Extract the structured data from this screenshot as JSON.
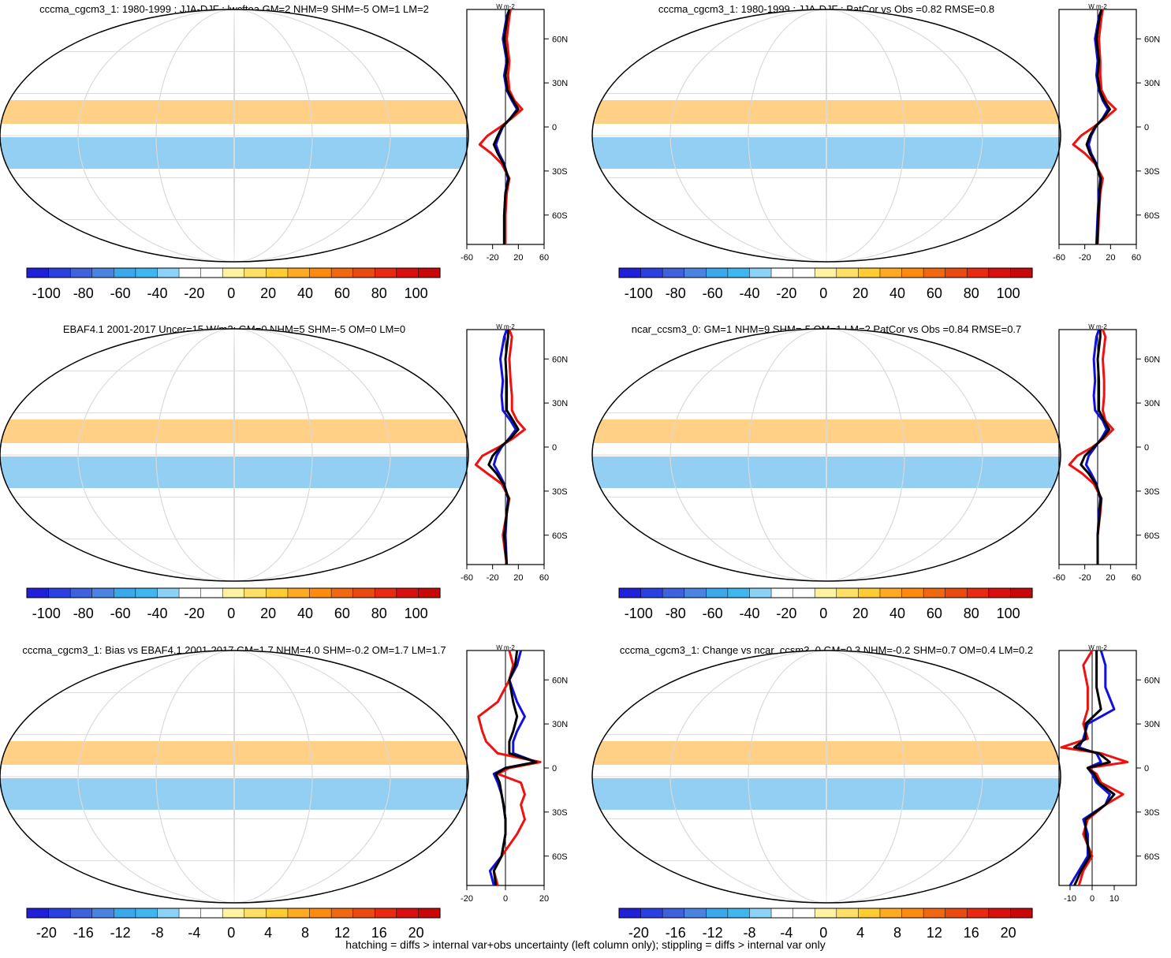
{
  "footer": "hatching = diffs > internal var+obs uncertainty (left column only); stippling = diffs > internal var only",
  "colors": {
    "map_fill": "#ffffff",
    "grid": "#d9d9d9",
    "zero_line": "#000000",
    "series_blue": "#1010e0",
    "series_red": "#f01010",
    "series_black": "#000000"
  },
  "chart_data": [
    {
      "type": "heatmap",
      "title": "cccma_cgcm3_1: 1980-1999 : JJA-DJF : lwcftoa GM=2 NHM=9 SHM=-5 OM=1 LM=2",
      "colorbar": {
        "labels": [
          "-100",
          "-80",
          "-60",
          "-40",
          "-20",
          "0",
          "20",
          "40",
          "60",
          "80",
          "100"
        ],
        "colors": [
          "#2020d8",
          "#2a40e0",
          "#3e62dc",
          "#4a84e0",
          "#3aa8ea",
          "#40b6f0",
          "#8cd2f6",
          "#ffffff",
          "#ffffff",
          "#fff2a0",
          "#ffe066",
          "#ffcc33",
          "#ffaa22",
          "#ff8a10",
          "#f06810",
          "#e84a10",
          "#e82a10",
          "#d81010",
          "#c80808"
        ]
      },
      "profile": {
        "xlabel": "W m-2",
        "xlim": [
          -60,
          60
        ],
        "xticks": [
          "-60",
          "-20",
          "20",
          "60"
        ],
        "ylim": [
          -80,
          80
        ],
        "yticks": [
          "60N",
          "30N",
          "0",
          "30S",
          "60S"
        ],
        "lat": [
          -80,
          -60,
          -45,
          -35,
          -25,
          -18,
          -12,
          -6,
          0,
          6,
          12,
          18,
          25,
          35,
          45,
          60,
          75,
          80
        ],
        "series": [
          {
            "name": "blue",
            "values": [
              -2,
              -2,
              0,
              4,
              -2,
              -10,
              -15,
              -10,
              -4,
              8,
              18,
              10,
              2,
              -2,
              2,
              -4,
              2,
              6
            ]
          },
          {
            "name": "red",
            "values": [
              0,
              0,
              2,
              6,
              -6,
              -22,
              -40,
              -28,
              -8,
              10,
              26,
              14,
              6,
              4,
              6,
              2,
              6,
              8
            ]
          },
          {
            "name": "black",
            "values": [
              -2,
              -2,
              0,
              5,
              -3,
              -12,
              -18,
              -12,
              -5,
              8,
              20,
              12,
              3,
              0,
              3,
              -2,
              3,
              6
            ]
          }
        ]
      }
    },
    {
      "type": "heatmap",
      "title": "cccma_cgcm3_1: 1980-1999 : JJA-DJF : PatCor vs Obs =0.82 RMSE=0.8",
      "colorbar": {
        "labels": [
          "-100",
          "-80",
          "-60",
          "-40",
          "-20",
          "0",
          "20",
          "40",
          "60",
          "80",
          "100"
        ],
        "colors": [
          "#2020d8",
          "#2a40e0",
          "#3e62dc",
          "#4a84e0",
          "#3aa8ea",
          "#40b6f0",
          "#8cd2f6",
          "#ffffff",
          "#ffffff",
          "#fff2a0",
          "#ffe066",
          "#ffcc33",
          "#ffaa22",
          "#ff8a10",
          "#f06810",
          "#e84a10",
          "#e82a10",
          "#d81010",
          "#c80808"
        ]
      },
      "profile": {
        "xlabel": "W m-2",
        "xlim": [
          -60,
          60
        ],
        "xticks": [
          "-60",
          "-20",
          "20",
          "60"
        ],
        "ylim": [
          -80,
          80
        ],
        "yticks": [
          "60N",
          "30N",
          "0",
          "30S",
          "60S"
        ],
        "lat": [
          -80,
          -60,
          -45,
          -35,
          -25,
          -18,
          -12,
          -6,
          0,
          6,
          12,
          18,
          25,
          35,
          45,
          60,
          75,
          80
        ],
        "series": [
          {
            "name": "blue",
            "values": [
              -2,
              0,
              2,
              4,
              -2,
              -10,
              -14,
              -10,
              -3,
              8,
              16,
              8,
              2,
              -2,
              0,
              -4,
              2,
              6
            ]
          },
          {
            "name": "red",
            "values": [
              0,
              2,
              4,
              8,
              -4,
              -20,
              -38,
              -26,
              -6,
              12,
              28,
              14,
              6,
              4,
              4,
              2,
              6,
              8
            ]
          },
          {
            "name": "black",
            "values": [
              -1,
              1,
              3,
              5,
              -3,
              -12,
              -17,
              -12,
              -4,
              9,
              19,
              10,
              3,
              0,
              2,
              -2,
              3,
              6
            ]
          }
        ]
      }
    },
    {
      "type": "heatmap",
      "title": "EBAF4.1 2001-2017 Uncer=15 W/m2: GM=0 NHM=5 SHM=-5 OM=0 LM=0",
      "colorbar": {
        "labels": [
          "-100",
          "-80",
          "-60",
          "-40",
          "-20",
          "0",
          "20",
          "40",
          "60",
          "80",
          "100"
        ],
        "colors": [
          "#2020d8",
          "#2a40e0",
          "#3e62dc",
          "#4a84e0",
          "#3aa8ea",
          "#40b6f0",
          "#8cd2f6",
          "#ffffff",
          "#ffffff",
          "#fff2a0",
          "#ffe066",
          "#ffcc33",
          "#ffaa22",
          "#ff8a10",
          "#f06810",
          "#e84a10",
          "#e82a10",
          "#d81010",
          "#c80808"
        ]
      },
      "profile": {
        "xlabel": "W m-2",
        "xlim": [
          -60,
          60
        ],
        "xticks": [
          "-60",
          "-20",
          "20",
          "60"
        ],
        "ylim": [
          -80,
          80
        ],
        "yticks": [
          "60N",
          "30N",
          "0",
          "30S",
          "60S"
        ],
        "lat": [
          -80,
          -60,
          -45,
          -35,
          -25,
          -18,
          -12,
          -6,
          0,
          6,
          12,
          18,
          25,
          35,
          45,
          60,
          75,
          80
        ],
        "series": [
          {
            "name": "blue",
            "values": [
              2,
              0,
              2,
              4,
              -2,
              -10,
              -18,
              -14,
              -6,
              6,
              16,
              8,
              -4,
              -6,
              -4,
              -8,
              -2,
              2
            ]
          },
          {
            "name": "red",
            "values": [
              2,
              -4,
              2,
              6,
              -6,
              -28,
              -46,
              -36,
              -10,
              12,
              30,
              18,
              10,
              10,
              8,
              6,
              10,
              6
            ]
          },
          {
            "name": "black",
            "values": [
              2,
              -2,
              2,
              5,
              -3,
              -14,
              -26,
              -20,
              -8,
              8,
              20,
              12,
              2,
              2,
              2,
              0,
              4,
              4
            ]
          }
        ]
      }
    },
    {
      "type": "heatmap",
      "title": "ncar_ccsm3_0: GM=1 NHM=9 SHM=-5 OM=1 LM=2 PatCor vs Obs =0.84 RMSE=0.7",
      "colorbar": {
        "labels": [
          "-100",
          "-80",
          "-60",
          "-40",
          "-20",
          "0",
          "20",
          "40",
          "60",
          "80",
          "100"
        ],
        "colors": [
          "#2020d8",
          "#2a40e0",
          "#3e62dc",
          "#4a84e0",
          "#3aa8ea",
          "#40b6f0",
          "#8cd2f6",
          "#ffffff",
          "#ffffff",
          "#fff2a0",
          "#ffe066",
          "#ffcc33",
          "#ffaa22",
          "#ff8a10",
          "#f06810",
          "#e84a10",
          "#e82a10",
          "#d81010",
          "#c80808"
        ]
      },
      "profile": {
        "xlabel": "W m-2",
        "xlim": [
          -60,
          60
        ],
        "xticks": [
          "-60",
          "-20",
          "20",
          "60"
        ],
        "ylim": [
          -80,
          80
        ],
        "yticks": [
          "60N",
          "30N",
          "0",
          "30S",
          "60S"
        ],
        "lat": [
          -80,
          -60,
          -45,
          -35,
          -25,
          -18,
          -12,
          -6,
          0,
          6,
          12,
          18,
          25,
          35,
          45,
          60,
          75,
          80
        ],
        "series": [
          {
            "name": "blue",
            "values": [
              0,
              0,
              2,
              4,
              -2,
              -10,
              -18,
              -14,
              -4,
              6,
              14,
              8,
              -4,
              -6,
              -4,
              -6,
              -2,
              2
            ]
          },
          {
            "name": "red",
            "values": [
              0,
              0,
              4,
              6,
              -6,
              -24,
              -44,
              -32,
              -8,
              10,
              24,
              12,
              8,
              10,
              10,
              8,
              12,
              8
            ]
          },
          {
            "name": "black",
            "values": [
              0,
              0,
              3,
              5,
              -3,
              -14,
              -26,
              -20,
              -6,
              8,
              18,
              10,
              2,
              2,
              2,
              0,
              4,
              4
            ]
          }
        ]
      }
    },
    {
      "type": "heatmap",
      "title": "cccma_cgcm3_1: Bias vs EBAF4.1 2001-2017 GM=1.7 NHM=4.0 SHM=-0.2 OM=1.7 LM=1.7",
      "colorbar": {
        "labels": [
          "-20",
          "-16",
          "-12",
          "-8",
          "-4",
          "0",
          "4",
          "8",
          "12",
          "16",
          "20"
        ],
        "colors": [
          "#2020d8",
          "#2a40e0",
          "#3e62dc",
          "#4a84e0",
          "#3aa8ea",
          "#40b6f0",
          "#8cd2f6",
          "#ffffff",
          "#ffffff",
          "#fff2a0",
          "#ffe066",
          "#ffcc33",
          "#ffaa22",
          "#ff8a10",
          "#f06810",
          "#e84a10",
          "#e82a10",
          "#d81010",
          "#c80808"
        ]
      },
      "profile": {
        "xlabel": "W m-2",
        "xlim": [
          -20,
          20
        ],
        "xticks": [
          "-20",
          "0",
          "20"
        ],
        "ylim": [
          -80,
          80
        ],
        "yticks": [
          "60N",
          "30N",
          "0",
          "30S",
          "60S"
        ],
        "lat": [
          -80,
          -70,
          -60,
          -45,
          -35,
          -25,
          -18,
          -10,
          -4,
          0,
          4,
          10,
          18,
          25,
          35,
          45,
          60,
          70,
          80
        ],
        "series": [
          {
            "name": "blue",
            "values": [
              -6,
              -8,
              -2,
              0,
              0,
              -1,
              -2,
              -4,
              -6,
              0,
              16,
              4,
              4,
              6,
              10,
              6,
              2,
              6,
              8
            ]
          },
          {
            "name": "red",
            "values": [
              -4,
              -6,
              -2,
              6,
              10,
              8,
              10,
              8,
              -4,
              2,
              18,
              -4,
              -10,
              -12,
              -14,
              -4,
              2,
              4,
              2
            ]
          },
          {
            "name": "black",
            "values": [
              -5,
              -6,
              -2,
              0,
              0,
              -1,
              -2,
              -3,
              -5,
              0,
              16,
              2,
              2,
              4,
              6,
              4,
              2,
              5,
              6
            ]
          }
        ]
      }
    },
    {
      "type": "heatmap",
      "title": "cccma_cgcm3_1: Change vs ncar_ccsm3_0 GM=0.3 NHM=-0.2 SHM=0.7 OM=0.4 LM=0.2",
      "colorbar": {
        "labels": [
          "-20",
          "-16",
          "-12",
          "-8",
          "-4",
          "0",
          "4",
          "8",
          "12",
          "16",
          "20"
        ],
        "colors": [
          "#2020d8",
          "#2a40e0",
          "#3e62dc",
          "#4a84e0",
          "#3aa8ea",
          "#40b6f0",
          "#8cd2f6",
          "#ffffff",
          "#ffffff",
          "#fff2a0",
          "#ffe066",
          "#ffcc33",
          "#ffaa22",
          "#ff8a10",
          "#f06810",
          "#e84a10",
          "#e82a10",
          "#d81010",
          "#c80808"
        ]
      },
      "profile": {
        "xlabel": "W m-2",
        "xlim": [
          -15,
          20
        ],
        "xticks": [
          "-10",
          "0",
          "10"
        ],
        "ylim": [
          -80,
          80
        ],
        "yticks": [
          "60N",
          "30N",
          "0",
          "30S",
          "60S"
        ],
        "lat": [
          -80,
          -70,
          -60,
          -45,
          -35,
          -25,
          -18,
          -10,
          -4,
          0,
          4,
          10,
          14,
          20,
          30,
          40,
          55,
          70,
          80
        ],
        "series": [
          {
            "name": "blue",
            "values": [
              -10,
              -6,
              -2,
              -2,
              -4,
              6,
              8,
              2,
              0,
              -2,
              4,
              2,
              -6,
              -4,
              -2,
              10,
              6,
              6,
              4
            ]
          },
          {
            "name": "red",
            "values": [
              -6,
              -4,
              0,
              -4,
              -2,
              6,
              14,
              4,
              2,
              -2,
              16,
              4,
              -14,
              -2,
              -4,
              -2,
              -2,
              -4,
              0
            ]
          },
          {
            "name": "black",
            "values": [
              -8,
              -5,
              -1,
              -3,
              -3,
              6,
              10,
              3,
              1,
              -2,
              8,
              3,
              -8,
              -3,
              -3,
              4,
              2,
              2,
              2
            ]
          }
        ]
      }
    }
  ]
}
